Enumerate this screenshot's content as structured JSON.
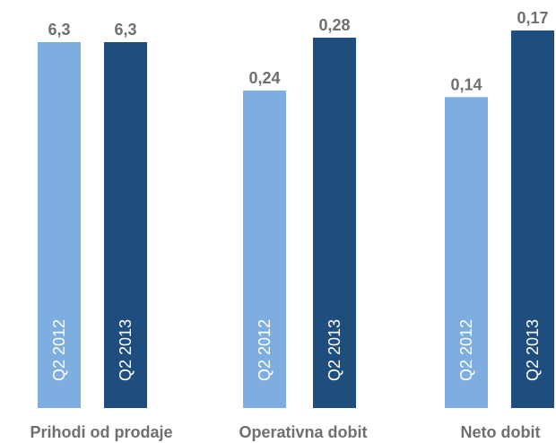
{
  "chart_data": {
    "type": "bar",
    "title": "",
    "xlabel": "",
    "ylabel": "",
    "series_labels": [
      "Q2 2012",
      "Q2 2013"
    ],
    "colors": [
      "#7eaee0",
      "#1f4e7e"
    ],
    "label_color": "#6f6f6f",
    "groups": [
      {
        "category": "Prihodi od prodaje",
        "bars": [
          {
            "series": "Q2 2012",
            "value": 6.3,
            "label": "6,3"
          },
          {
            "series": "Q2 2013",
            "value": 6.3,
            "label": "6,3"
          }
        ]
      },
      {
        "category": "Operativna dobit",
        "bars": [
          {
            "series": "Q2 2012",
            "value": 0.24,
            "label": "0,24"
          },
          {
            "series": "Q2 2013",
            "value": 0.28,
            "label": "0,28"
          }
        ]
      },
      {
        "category": "Neto dobit",
        "bars": [
          {
            "series": "Q2 2012",
            "value": 0.14,
            "label": "0,14"
          },
          {
            "series": "Q2 2013",
            "value": 0.17,
            "label": "0,17"
          }
        ]
      }
    ]
  }
}
